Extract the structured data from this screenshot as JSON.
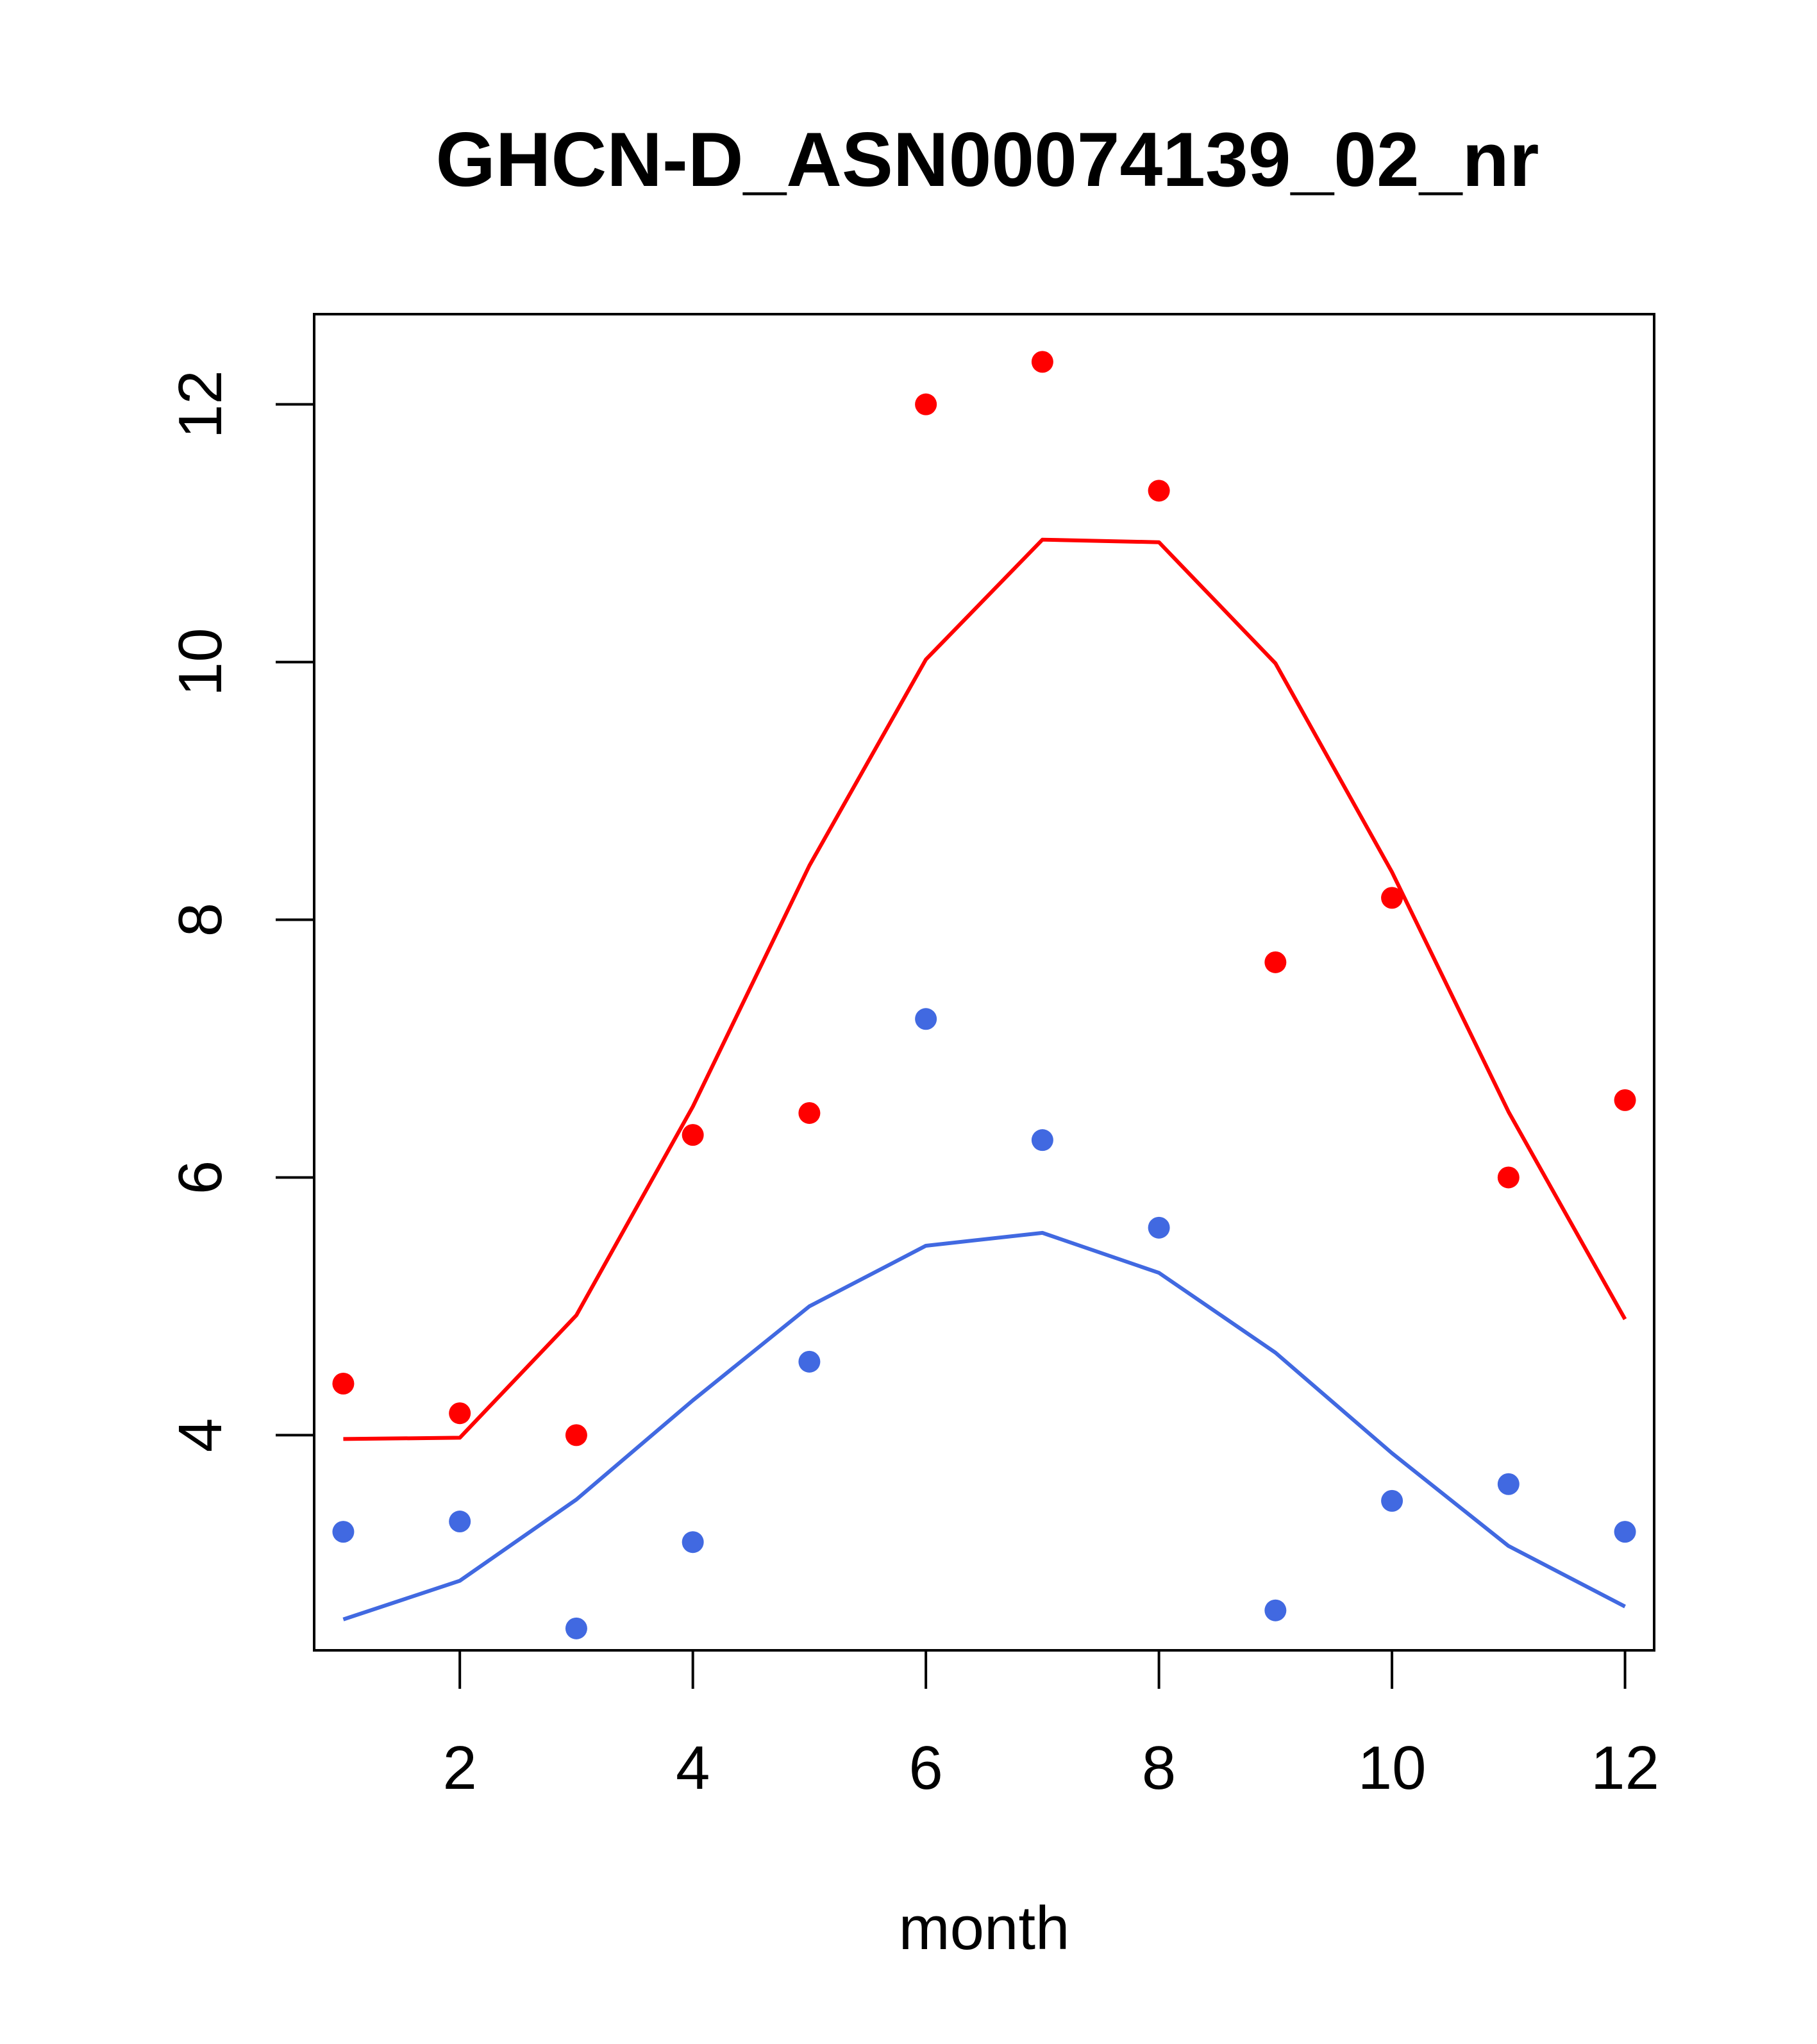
{
  "chart_data": {
    "type": "scatter",
    "title": "GHCN-D_ASN00074139_02_nr",
    "xlabel": "month",
    "ylabel": "",
    "x": [
      1,
      2,
      3,
      4,
      5,
      6,
      7,
      8,
      9,
      10,
      11,
      12
    ],
    "xlim": [
      0.75,
      12.25
    ],
    "ylim": [
      2.33,
      12.7
    ],
    "xticks": [
      2,
      4,
      6,
      8,
      10,
      12
    ],
    "yticks": [
      4,
      6,
      8,
      10,
      12
    ],
    "grid": false,
    "series": [
      {
        "color": "#ff0000",
        "points": [
          4.4,
          4.17,
          4.0,
          6.33,
          6.5,
          12.0,
          12.33,
          11.33,
          7.67,
          8.17,
          6.0,
          6.6
        ],
        "line": [
          3.97,
          3.98,
          4.93,
          6.55,
          8.42,
          10.02,
          10.95,
          10.93,
          9.99,
          8.37,
          6.51,
          4.9
        ]
      },
      {
        "color": "#4169e1",
        "points": [
          3.25,
          3.33,
          2.5,
          3.17,
          4.57,
          7.23,
          6.29,
          5.61,
          2.64,
          3.49,
          3.62,
          3.25
        ],
        "line": [
          2.57,
          2.87,
          3.5,
          4.27,
          5.0,
          5.47,
          5.57,
          5.26,
          4.64,
          3.86,
          3.14,
          2.67
        ]
      }
    ]
  }
}
